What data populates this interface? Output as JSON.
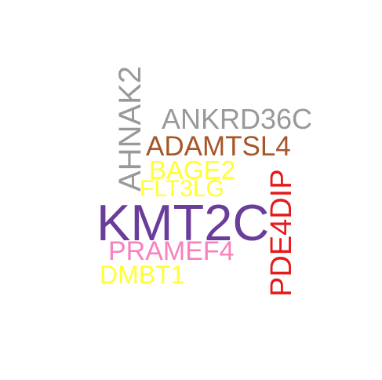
{
  "cloud": {
    "words": {
      "ahnak2": {
        "text": "AHNAK2",
        "color": "#999999"
      },
      "ankrd36c": {
        "text": "ANKRD36C",
        "color": "#999999"
      },
      "adamtsl4": {
        "text": "ADAMTSL4",
        "color": "#a65628"
      },
      "bage2": {
        "text": "BAGE2",
        "color": "#ffff33"
      },
      "flt3lg": {
        "text": "FLT3LG",
        "color": "#ffff33"
      },
      "kmt2c": {
        "text": "KMT2C",
        "color": "#6a3d9a"
      },
      "pde4dip": {
        "text": "PDE4DIP",
        "color": "#e41a1c"
      },
      "pramef4": {
        "text": "PRAMEF4",
        "color": "#f781bf"
      },
      "dmbt1": {
        "text": "DMBT1",
        "color": "#ffff33"
      }
    }
  }
}
